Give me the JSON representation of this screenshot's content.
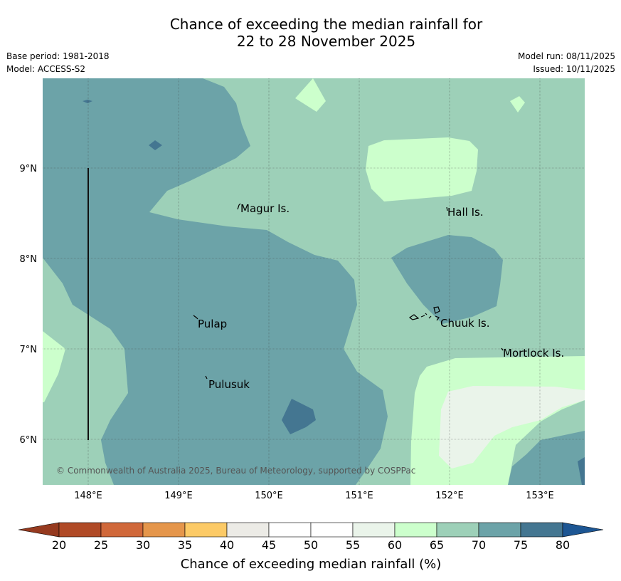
{
  "title": {
    "line1": "Chance of exceeding the median rainfall for",
    "line2": "22 to 28 November 2025"
  },
  "meta": {
    "base_period": "Base period: 1981-2018",
    "model": "Model: ACCESS-S2",
    "model_run": "Model run: 08/11/2025",
    "issued": "Issued: 10/11/2025"
  },
  "map": {
    "lon_range": [
      147.5,
      153.5
    ],
    "lat_range": [
      5.5,
      10.0
    ],
    "lon_ticks": [
      "148°E",
      "149°E",
      "150°E",
      "151°E",
      "152°E",
      "153°E"
    ],
    "lat_ticks": [
      "9°N",
      "8°N",
      "7°N",
      "6°N"
    ],
    "places": [
      {
        "name": "Magur Is.",
        "lon": 149.7,
        "lat": 8.57
      },
      {
        "name": "Hall Is.",
        "lon": 151.97,
        "lat": 8.53
      },
      {
        "name": "Pulap",
        "lon": 149.2,
        "lat": 7.3
      },
      {
        "name": "Pulusuk",
        "lon": 149.3,
        "lat": 6.63
      },
      {
        "name": "Chuuk Is.",
        "lon": 151.85,
        "lat": 7.33
      },
      {
        "name": "Mortlock Is.",
        "lon": 152.6,
        "lat": 6.96
      }
    ],
    "copyright": "© Commonwealth of Australia 2025, Bureau of Meteorology, supported by COSPPac"
  },
  "colorbar": {
    "ticks": [
      "20",
      "25",
      "30",
      "35",
      "40",
      "45",
      "50",
      "55",
      "60",
      "65",
      "70",
      "75",
      "80"
    ],
    "colors": [
      "#b04a26",
      "#d0683a",
      "#e5964b",
      "#fcca66",
      "#ecebe6",
      "#ffffff",
      "#ffffff",
      "#eaf4ea",
      "#ccffcc",
      "#9dd0b8",
      "#6ca3a8",
      "#447691"
    ],
    "under_color": "#963a1f",
    "over_color": "#1d5693",
    "label": "Chance of exceeding median rainfall (%)"
  },
  "legend_colors": {
    "band_60_65": "#ccffcc",
    "band_65_70": "#9dd0b8",
    "band_70_75": "#6ca3a8",
    "band_75_80": "#447691",
    "band_55_60": "#eaf4ea"
  }
}
